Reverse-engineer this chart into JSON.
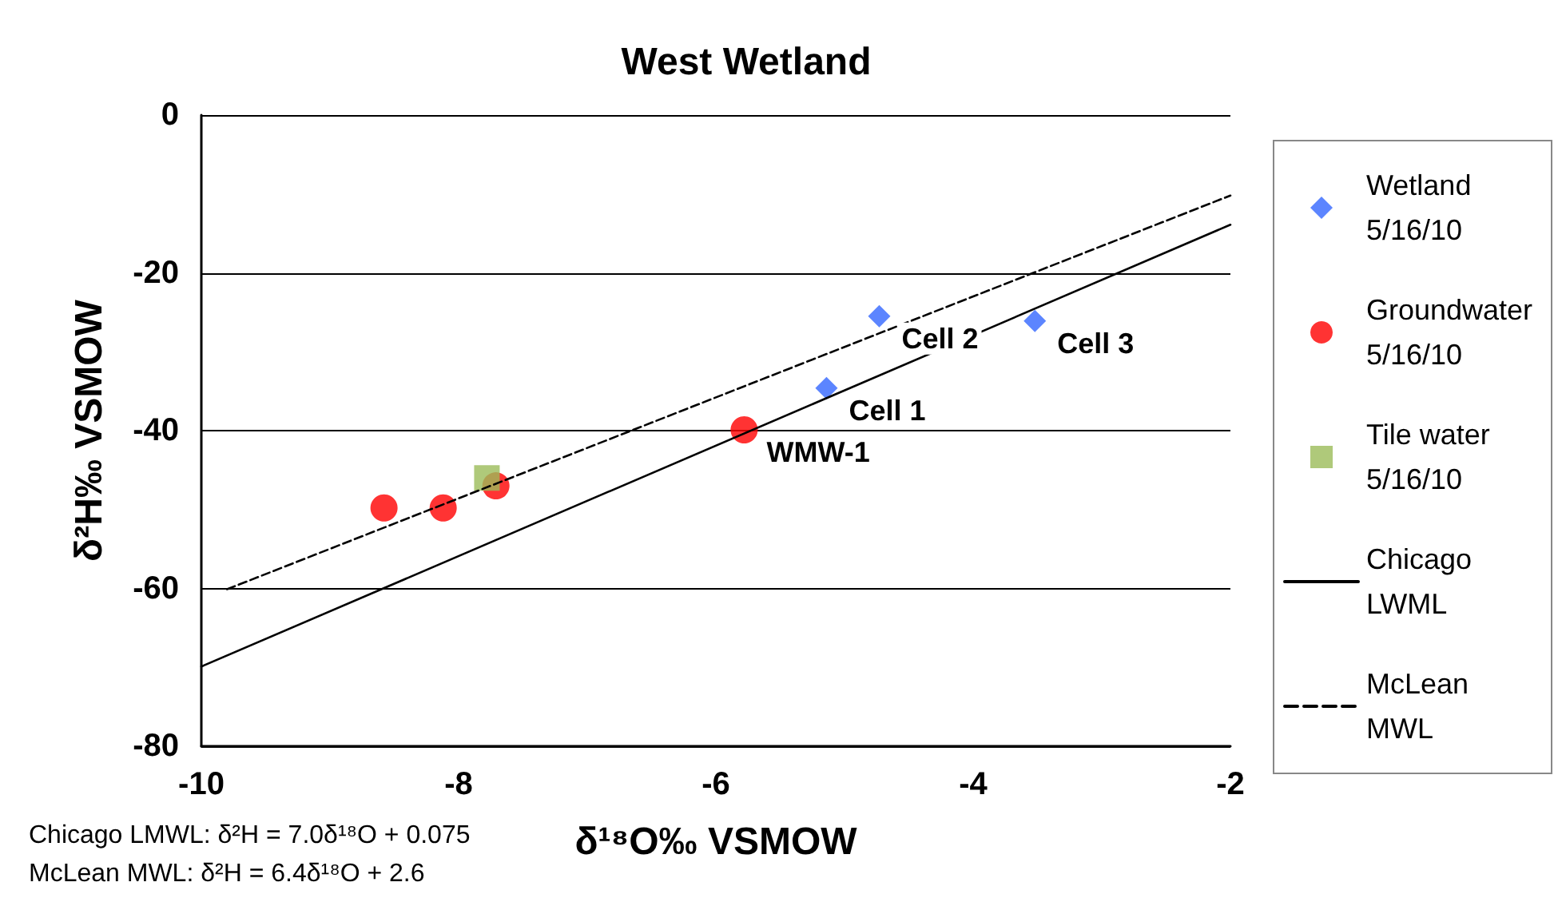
{
  "chart_data": {
    "type": "scatter",
    "title": "West Wetland",
    "xlabel": "δ¹⁸O‰ VSMOW",
    "ylabel": "δ²H‰ VSMOW",
    "xlim": [
      -10,
      -2
    ],
    "xticks": [
      -10,
      -8,
      -6,
      -4,
      -2
    ],
    "ylim": [
      -80,
      0
    ],
    "yticks": [
      -80,
      -60,
      -40,
      -20,
      0
    ],
    "grid": "y",
    "legend": "right",
    "series": [
      {
        "name": "Wetland 5/16/10",
        "marker": "diamond",
        "color": "#3366ff",
        "x": [
          -5.14,
          -4.73,
          -3.52
        ],
        "values": [
          -34.6,
          -25.5,
          -26.1
        ]
      },
      {
        "name": "Groundwater 5/16/10",
        "marker": "circle",
        "color": "#ff0000",
        "x": [
          -8.58,
          -8.12,
          -7.71,
          -5.78
        ],
        "values": [
          -49.8,
          -49.8,
          -47.0,
          -39.9
        ]
      },
      {
        "name": "Tile water 5/16/10",
        "marker": "square",
        "color": "#9bbb59",
        "x": [
          -7.78
        ],
        "values": [
          -46.0
        ]
      },
      {
        "name": "Chicago LWML",
        "type": "line",
        "marker": "none",
        "line_style": "solid",
        "color": "#000000",
        "x": [
          -10,
          -2
        ],
        "values": [
          -69.9,
          -13.9
        ]
      },
      {
        "name": "McLean MWL",
        "type": "line",
        "marker": "none",
        "line_style": "dashed",
        "color": "#000000",
        "x": [
          -9.8,
          -2
        ],
        "values": [
          -60.1,
          -10.2
        ]
      }
    ],
    "annotations": [
      {
        "text": "Cell 1",
        "x": -5.14,
        "y": -34.6
      },
      {
        "text": "Cell 2",
        "x": -4.73,
        "y": -25.5
      },
      {
        "text": "Cell 3",
        "x": -3.52,
        "y": -26.1
      },
      {
        "text": "WMW-1",
        "x": -5.78,
        "y": -39.9
      },
      "Chicago LMWL: δ²H = 7.0δ¹⁸O + 0.075",
      "McLean MWL: δ²H = 6.4δ¹⁸O + 2.6"
    ]
  }
}
